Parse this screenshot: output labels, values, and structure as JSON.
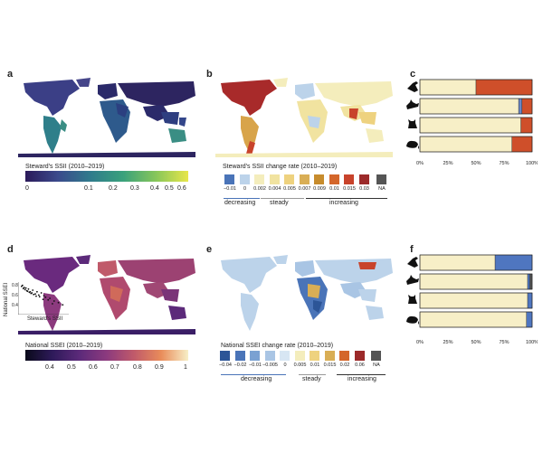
{
  "panels": {
    "a": {
      "letter": "a",
      "legend_title": "Steward's SSII (2010–2019)",
      "ticks": [
        "0",
        "0.1",
        "0.2",
        "0.3",
        "0.4",
        "0.5",
        "0.6"
      ]
    },
    "b": {
      "letter": "b",
      "legend_title": "Steward's SSII change rate (2010–2019)",
      "swatches": [
        {
          "label": "−0.01",
          "color": "#4a74b8"
        },
        {
          "label": "0",
          "color": "#bcd3ea"
        },
        {
          "label": "0.002",
          "color": "#f4edbc"
        },
        {
          "label": "0.004",
          "color": "#f1e3a0"
        },
        {
          "label": "0.005",
          "color": "#eed27f"
        },
        {
          "label": "0.007",
          "color": "#d9ae55"
        },
        {
          "label": "0.009",
          "color": "#c78c2d"
        },
        {
          "label": "0.01",
          "color": "#d4662a"
        },
        {
          "label": "0.015",
          "color": "#c8432b"
        },
        {
          "label": "0.03",
          "color": "#9c2a2a"
        },
        {
          "label": "NA",
          "color": "#555555"
        }
      ],
      "categories": [
        "decreasing",
        "steady",
        "increasing"
      ],
      "category_colors": [
        "#4a74b8",
        "#999999",
        "#c8432b"
      ]
    },
    "c": {
      "letter": "c",
      "axis_ticks": [
        "0%",
        "25%",
        "50%",
        "75%",
        "100%"
      ]
    },
    "d": {
      "letter": "d",
      "legend_title": "National SSEI (2010–2019)",
      "ticks": [
        "0.4",
        "0.5",
        "0.6",
        "0.7",
        "0.8",
        "0.9",
        "1"
      ],
      "inset": {
        "ylabel": "National SSEI",
        "xlabel": "Steward's SSII",
        "yticks": [
          "0.8",
          "0.6",
          "0.4"
        ]
      }
    },
    "e": {
      "letter": "e",
      "legend_title": "National SSEI change rate (2010–2019)",
      "swatches": [
        {
          "label": "−0.04",
          "color": "#2c5597"
        },
        {
          "label": "−0.02",
          "color": "#4a74b8"
        },
        {
          "label": "−0.01",
          "color": "#7aa1d2"
        },
        {
          "label": "−0.005",
          "color": "#a9c5e4"
        },
        {
          "label": "0",
          "color": "#d7e6f3"
        },
        {
          "label": "0.005",
          "color": "#f4edbc"
        },
        {
          "label": "0.01",
          "color": "#eed27f"
        },
        {
          "label": "0.015",
          "color": "#d9ae55"
        },
        {
          "label": "0.02",
          "color": "#d4662a"
        },
        {
          "label": "0.06",
          "color": "#9c2a2a"
        },
        {
          "label": "NA",
          "color": "#555555"
        }
      ],
      "categories": [
        "decreasing",
        "steady",
        "increasing"
      ],
      "category_colors": [
        "#4a74b8",
        "#999999",
        "#c8432b"
      ]
    },
    "f": {
      "letter": "f",
      "axis_ticks": [
        "0%",
        "25%",
        "50%",
        "75%",
        "100%"
      ]
    }
  },
  "chart_data": [
    {
      "panel": "c",
      "type": "bar",
      "orientation": "horizontal",
      "stacked": true,
      "categories": [
        "bird",
        "fox",
        "cat",
        "rodent"
      ],
      "series": [
        {
          "values": [
            0.5,
            0.88,
            0.9,
            0.82
          ],
          "color": "#f7efc7"
        },
        {
          "values": [
            0.0,
            0.03,
            0.0,
            0.0
          ],
          "color": "#6a86c6"
        },
        {
          "values": [
            0.5,
            0.09,
            0.1,
            0.18
          ],
          "color": "#cf4f2a"
        }
      ],
      "xlim": [
        0,
        1
      ]
    },
    {
      "panel": "f",
      "type": "bar",
      "orientation": "horizontal",
      "stacked": true,
      "categories": [
        "bird",
        "fox",
        "cat",
        "rodent"
      ],
      "series": [
        {
          "values": [
            0.67,
            0.96,
            0.96,
            0.95
          ],
          "color": "#f7efc7"
        },
        {
          "values": [
            0.33,
            0.02,
            0.04,
            0.05
          ],
          "color": "#4f76c0"
        },
        {
          "values": [
            0.0,
            0.02,
            0.0,
            0.0
          ],
          "color": "#555555"
        }
      ],
      "xlim": [
        0,
        1
      ]
    },
    {
      "panel": "d-inset",
      "type": "scatter",
      "xlabel": "Steward's SSII",
      "ylabel": "National SSEI",
      "ylim": [
        0.3,
        0.9
      ],
      "x": [
        0.02,
        0.04,
        0.05,
        0.06,
        0.08,
        0.1,
        0.12,
        0.14,
        0.15,
        0.18,
        0.2,
        0.22,
        0.25,
        0.28,
        0.3,
        0.35,
        0.4,
        0.45,
        0.5,
        0.03,
        0.07,
        0.09,
        0.11,
        0.13,
        0.16,
        0.19,
        0.23,
        0.27,
        0.33,
        0.38
      ],
      "y": [
        0.82,
        0.78,
        0.8,
        0.76,
        0.74,
        0.77,
        0.72,
        0.7,
        0.75,
        0.68,
        0.72,
        0.66,
        0.7,
        0.65,
        0.62,
        0.6,
        0.55,
        0.52,
        0.48,
        0.84,
        0.79,
        0.73,
        0.71,
        0.69,
        0.67,
        0.64,
        0.63,
        0.58,
        0.57,
        0.5
      ]
    }
  ],
  "colors": {
    "ssii_gradient": [
      "#2b1a5a",
      "#3b4a8c",
      "#2f7b8c",
      "#3aa17c",
      "#86c65a",
      "#e8e64a"
    ],
    "ssei_gradient": [
      "#0a0a1a",
      "#2e1a5a",
      "#5c2a7a",
      "#8c3a7e",
      "#c05a6a",
      "#e98c5a",
      "#f7efc7"
    ]
  }
}
